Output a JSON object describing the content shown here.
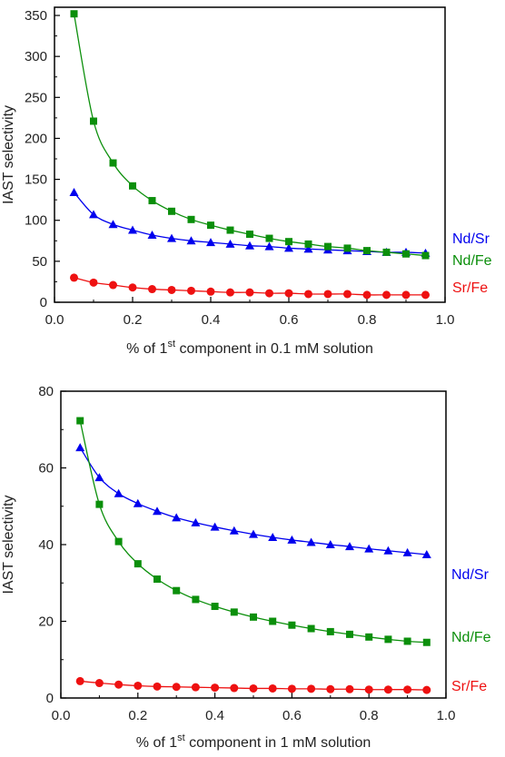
{
  "chart_data": [
    {
      "type": "line",
      "xlabel": "% of 1st component in 0.1 mM solution",
      "xlabel_parts": [
        "% of 1",
        "st",
        " component in 0.1 mM solution"
      ],
      "ylabel": "IAST selectivity",
      "xlim": [
        0.0,
        1.0
      ],
      "ylim": [
        0,
        360
      ],
      "xticks": [
        0.0,
        0.2,
        0.4,
        0.6,
        0.8,
        1.0
      ],
      "yticks": [
        0,
        50,
        100,
        150,
        200,
        250,
        300,
        350
      ],
      "grid": false,
      "x": [
        0.05,
        0.1,
        0.15,
        0.2,
        0.25,
        0.3,
        0.35,
        0.4,
        0.45,
        0.5,
        0.55,
        0.6,
        0.65,
        0.7,
        0.75,
        0.8,
        0.85,
        0.9,
        0.95
      ],
      "series": [
        {
          "name": "Nd/Sr",
          "color": "#0000ee",
          "marker": "triangle",
          "values": [
            134,
            107,
            95,
            88,
            82,
            78,
            75,
            73,
            71,
            69,
            68,
            66,
            65,
            64,
            63,
            62,
            61,
            61,
            60
          ]
        },
        {
          "name": "Nd/Fe",
          "color": "#0b8f0b",
          "marker": "square",
          "values": [
            352,
            221,
            170,
            142,
            124,
            111,
            101,
            94,
            88,
            83,
            78,
            74,
            71,
            68,
            66,
            63,
            61,
            59,
            57
          ]
        },
        {
          "name": "Sr/Fe",
          "color": "#ee1111",
          "marker": "circle",
          "values": [
            30,
            24,
            21,
            18,
            16,
            15,
            14,
            13,
            12,
            12,
            11,
            11,
            10,
            10,
            10,
            9,
            9,
            9,
            9
          ]
        }
      ]
    },
    {
      "type": "line",
      "xlabel": "% of 1st component in 1 mM solution",
      "xlabel_parts": [
        "% of 1",
        "st",
        " component in 1 mM solution"
      ],
      "ylabel": "IAST selectivity",
      "xlim": [
        0.0,
        1.0
      ],
      "ylim": [
        0,
        80
      ],
      "xticks": [
        0.0,
        0.2,
        0.4,
        0.6,
        0.8,
        1.0
      ],
      "yticks": [
        0,
        20,
        40,
        60,
        80
      ],
      "grid": false,
      "x": [
        0.05,
        0.1,
        0.15,
        0.2,
        0.25,
        0.3,
        0.35,
        0.4,
        0.45,
        0.5,
        0.55,
        0.6,
        0.65,
        0.7,
        0.75,
        0.8,
        0.85,
        0.9,
        0.95
      ],
      "series": [
        {
          "name": "Nd/Sr",
          "color": "#0000ee",
          "marker": "triangle",
          "values": [
            65.3,
            57.5,
            53.3,
            50.7,
            48.7,
            47.0,
            45.7,
            44.6,
            43.6,
            42.7,
            41.9,
            41.2,
            40.6,
            40.0,
            39.5,
            38.9,
            38.4,
            37.9,
            37.4
          ]
        },
        {
          "name": "Nd/Fe",
          "color": "#0b8f0b",
          "marker": "square",
          "values": [
            72.3,
            50.5,
            40.8,
            35.0,
            31.0,
            28.0,
            25.7,
            23.9,
            22.4,
            21.1,
            20.0,
            19.0,
            18.1,
            17.3,
            16.6,
            15.9,
            15.3,
            14.8,
            14.5
          ]
        },
        {
          "name": "Sr/Fe",
          "color": "#ee1111",
          "marker": "circle",
          "values": [
            4.4,
            3.9,
            3.5,
            3.2,
            3.0,
            2.9,
            2.8,
            2.7,
            2.6,
            2.5,
            2.5,
            2.4,
            2.4,
            2.3,
            2.3,
            2.2,
            2.2,
            2.2,
            2.1
          ]
        }
      ]
    }
  ]
}
